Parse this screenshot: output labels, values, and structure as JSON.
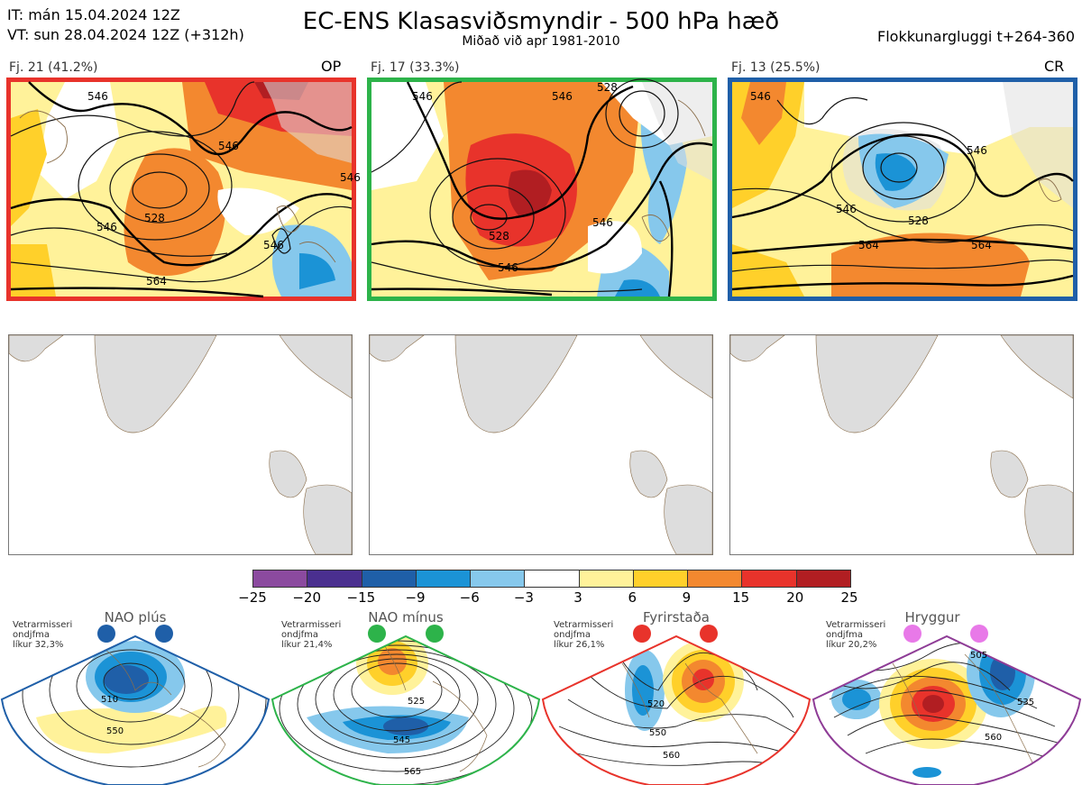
{
  "header": {
    "it_line": "IT: mán 15.04.2024 12Z",
    "vt_line": "VT: sun 28.04.2024 12Z  (+312h)",
    "title": "EC-ENS Klasasviðsmyndir - 500 hPa hæð",
    "subtitle": "Miðað við apr 1981-2010",
    "window": "Flokkunargluggi t+264-360"
  },
  "clusters": [
    {
      "label": "Fj. 21 (41.2%)",
      "tag": "OP",
      "border_color": "#e8332b",
      "contour_labels": [
        "546",
        "528",
        "546",
        "564",
        "546",
        "546",
        "546"
      ]
    },
    {
      "label": "Fj. 17 (33.3%)",
      "tag": "",
      "border_color": "#2db34a",
      "contour_labels": [
        "546",
        "528",
        "546",
        "546",
        "546",
        "528"
      ]
    },
    {
      "label": "Fj. 13 (25.5%)",
      "tag": "CR",
      "border_color": "#1f5fa8",
      "contour_labels": [
        "546",
        "528",
        "546",
        "564",
        "564",
        "546"
      ]
    }
  ],
  "colorbar": {
    "ticks": [
      "−25",
      "−20",
      "−15",
      "−9",
      "−6",
      "−3",
      "3",
      "6",
      "9",
      "15",
      "20",
      "25"
    ],
    "colors": [
      "#8b4a9f",
      "#4a2f8f",
      "#1f5fa8",
      "#1b93d6",
      "#86c8ec",
      "#ffffff",
      "#fff29a",
      "#ffd02a",
      "#f3882f",
      "#e8332b",
      "#b11e22"
    ]
  },
  "regimes": [
    {
      "name": "NAO plús",
      "info": [
        "Vetrarmisseri",
        "ondjfma",
        "líkur 32,3%"
      ],
      "dot_color": "#1f5fa8",
      "border_color": "#1f5fa8",
      "contour_labels": [
        "510",
        "550"
      ]
    },
    {
      "name": "NAO mínus",
      "info": [
        "Vetrarmisseri",
        "ondjfma",
        "líkur 21,4%"
      ],
      "dot_color": "#2db34a",
      "border_color": "#2db34a",
      "contour_labels": [
        "525",
        "545",
        "565"
      ]
    },
    {
      "name": "Fyrirstaða",
      "info": [
        "Vetrarmisseri",
        "ondjfma",
        "líkur 26,1%"
      ],
      "dot_color": "#e8332b",
      "border_color": "#e8332b",
      "contour_labels": [
        "520",
        "550",
        "560"
      ]
    },
    {
      "name": "Hryggur",
      "info": [
        "Vetrarmisseri",
        "ondjfma",
        "líkur 20,2%"
      ],
      "dot_color": "#e879e8",
      "border_color": "#8e3c96",
      "contour_labels": [
        "505",
        "535",
        "560"
      ]
    }
  ]
}
